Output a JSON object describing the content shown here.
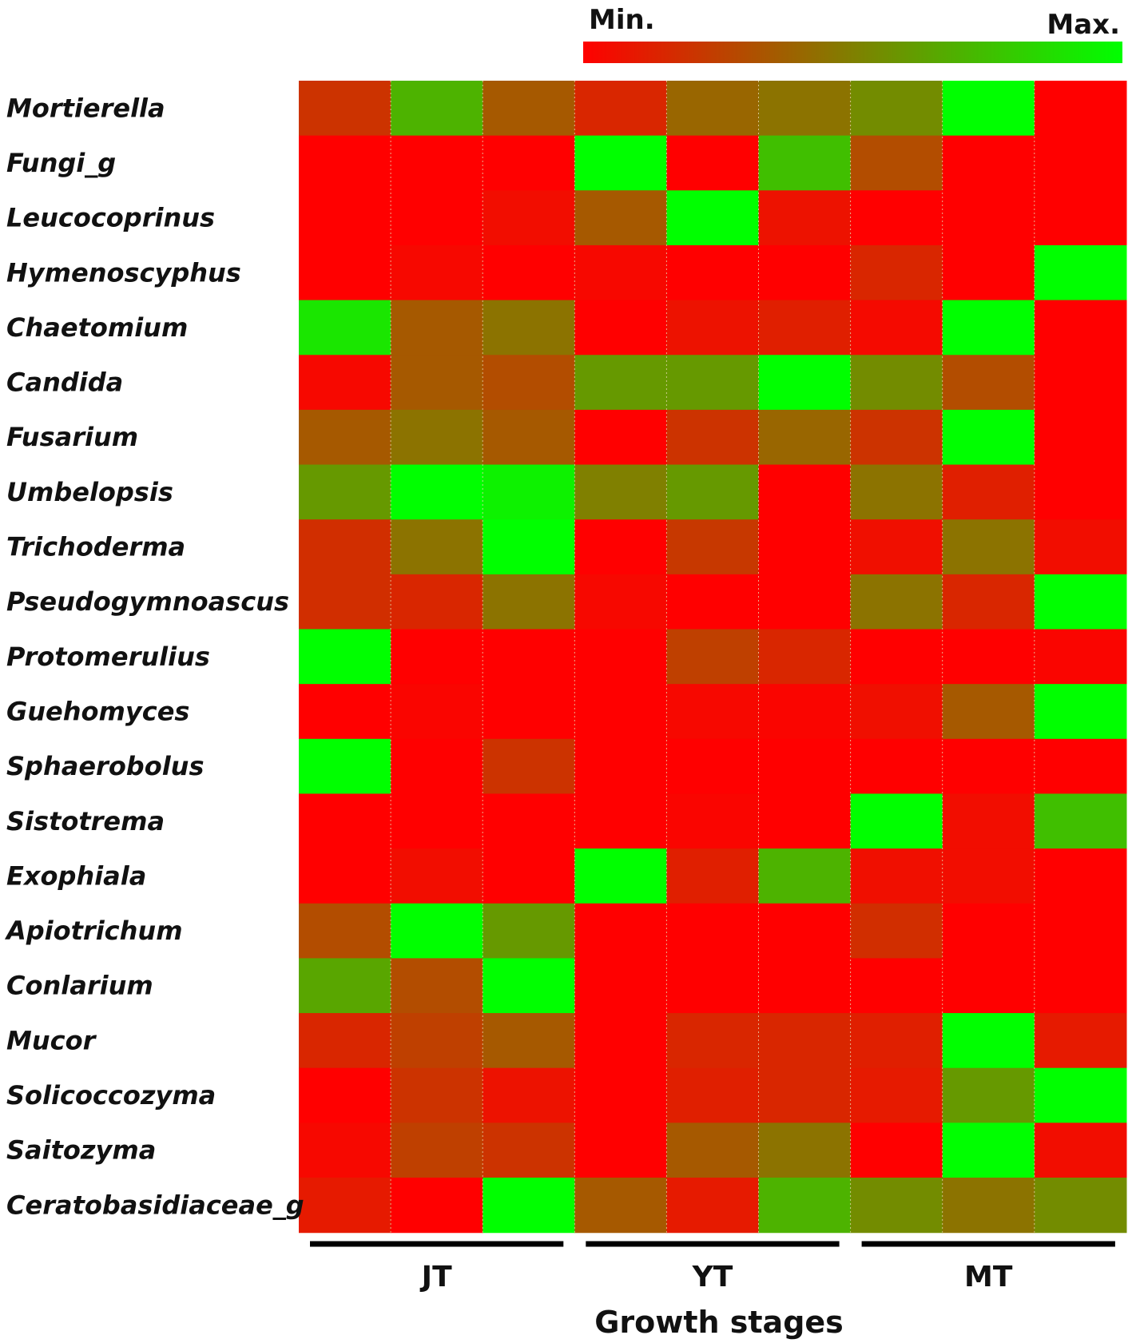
{
  "chart_data": {
    "type": "heatmap",
    "title": "",
    "xlabel": "Growth stages",
    "ylabel": "",
    "legend": {
      "min_label": "Min.",
      "max_label": "Max.",
      "placement": "top-right",
      "min_color": "#ff0000",
      "max_color": "#00ff00"
    },
    "groups": [
      "JT",
      "YT",
      "MT"
    ],
    "columns_per_group": 3,
    "rows": [
      "Mortierella",
      "Fungi_g",
      "Leucocoprinus",
      "Hymenoscyphus",
      "Chaetomium",
      "Candida",
      "Fusarium",
      "Umbelopsis",
      "Trichoderma",
      "Pseudogymnoascus",
      "Protomerulius",
      "Guehomyces",
      "Sphaerobolus",
      "Sistotrema",
      "Exophiala",
      "Apiotrichum",
      "Conlarium",
      "Mucor",
      "Solicoccozyma",
      "Saitozyma",
      "Ceratobasidiaceae_g"
    ],
    "scale": [
      0,
      1
    ],
    "values": [
      [
        0.2,
        0.7,
        0.35,
        0.15,
        0.4,
        0.45,
        0.55,
        1.0,
        0.0
      ],
      [
        0.0,
        0.0,
        0.0,
        1.0,
        0.0,
        0.75,
        0.3,
        0.0,
        0.0
      ],
      [
        0.0,
        0.0,
        0.05,
        0.35,
        1.0,
        0.07,
        0.0,
        0.0,
        0.0
      ],
      [
        0.0,
        0.03,
        0.0,
        0.03,
        0.0,
        0.0,
        0.15,
        0.0,
        1.0
      ],
      [
        0.9,
        0.35,
        0.45,
        0.0,
        0.07,
        0.12,
        0.04,
        1.0,
        0.0
      ],
      [
        0.03,
        0.35,
        0.3,
        0.6,
        0.6,
        1.0,
        0.55,
        0.3,
        0.0
      ],
      [
        0.35,
        0.45,
        0.35,
        0.0,
        0.2,
        0.4,
        0.2,
        1.0,
        0.0
      ],
      [
        0.6,
        1.0,
        0.95,
        0.5,
        0.6,
        0.0,
        0.45,
        0.12,
        0.0
      ],
      [
        0.18,
        0.45,
        1.0,
        0.0,
        0.22,
        0.0,
        0.06,
        0.45,
        0.05
      ],
      [
        0.18,
        0.15,
        0.45,
        0.03,
        0.0,
        0.0,
        0.45,
        0.15,
        1.0
      ],
      [
        1.0,
        0.0,
        0.0,
        0.0,
        0.25,
        0.15,
        0.0,
        0.0,
        0.02
      ],
      [
        0.0,
        0.02,
        0.0,
        0.0,
        0.03,
        0.02,
        0.06,
        0.35,
        1.0
      ],
      [
        1.0,
        0.0,
        0.2,
        0.0,
        0.0,
        0.0,
        0.0,
        0.0,
        0.0
      ],
      [
        0.0,
        0.0,
        0.0,
        0.0,
        0.02,
        0.0,
        1.0,
        0.05,
        0.75
      ],
      [
        0.0,
        0.05,
        0.0,
        1.0,
        0.12,
        0.7,
        0.06,
        0.05,
        0.0
      ],
      [
        0.3,
        1.0,
        0.6,
        0.0,
        0.0,
        0.0,
        0.18,
        0.0,
        0.0
      ],
      [
        0.65,
        0.3,
        1.0,
        0.0,
        0.0,
        0.0,
        0.0,
        0.0,
        0.0
      ],
      [
        0.15,
        0.25,
        0.35,
        0.0,
        0.15,
        0.15,
        0.12,
        1.0,
        0.1
      ],
      [
        0.0,
        0.2,
        0.07,
        0.0,
        0.12,
        0.15,
        0.1,
        0.6,
        1.0
      ],
      [
        0.03,
        0.25,
        0.2,
        0.0,
        0.35,
        0.45,
        0.0,
        1.0,
        0.05
      ],
      [
        0.1,
        0.0,
        1.0,
        0.35,
        0.1,
        0.7,
        0.55,
        0.45,
        0.55
      ]
    ]
  }
}
